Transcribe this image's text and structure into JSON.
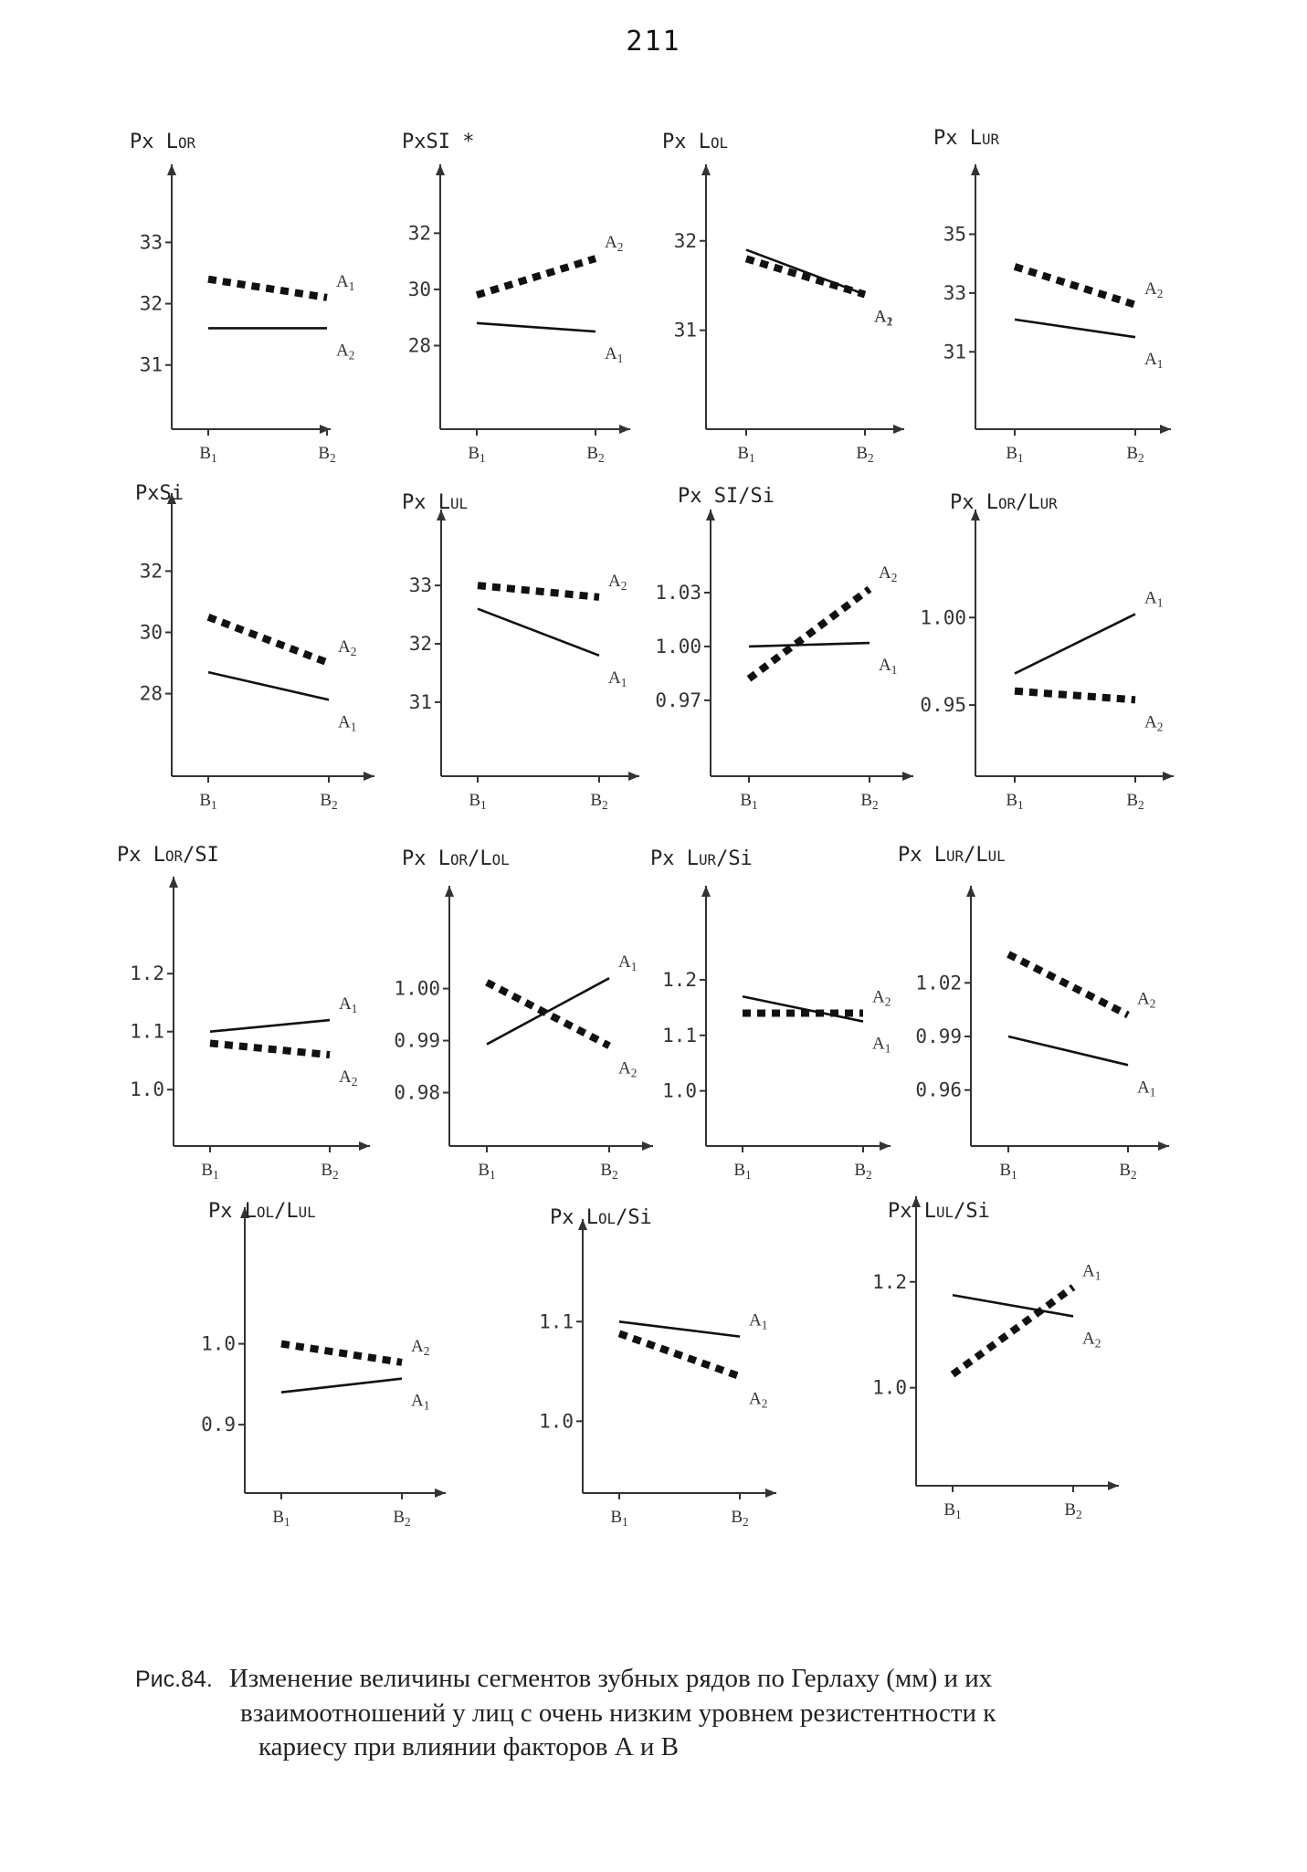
{
  "page_number": "211",
  "caption": {
    "figure_label": "Рис.84.",
    "line1": "Изменение величины сегментов зубных рядов по Герлаху (мм) и их",
    "line2": "взаимоотношений у лиц с очень низким уровнем резистентности к",
    "line3": "кариесу при влиянии  факторов А и В"
  },
  "chart_data": [
    {
      "type": "line",
      "ylabel": "Px Lor",
      "categories": [
        "B1",
        "B2"
      ],
      "yticks": [
        "33",
        "32",
        "31"
      ],
      "ylim": [
        30.4,
        33.9
      ],
      "series": [
        {
          "name": "A1",
          "style": "dotted",
          "values": [
            32.4,
            32.1
          ]
        },
        {
          "name": "A2",
          "style": "solid",
          "values": [
            31.6,
            31.6
          ]
        }
      ]
    },
    {
      "type": "line",
      "ylabel": "PxSI *",
      "categories": [
        "B1",
        "B2"
      ],
      "yticks": [
        "32",
        "30",
        "28"
      ],
      "ylim": [
        26.0,
        33.8
      ],
      "series": [
        {
          "name": "A2",
          "style": "dotted",
          "values": [
            29.8,
            31.1
          ]
        },
        {
          "name": "A1",
          "style": "solid",
          "values": [
            28.8,
            28.5
          ]
        }
      ]
    },
    {
      "type": "line",
      "ylabel": "Px Lol",
      "categories": [
        "B1",
        "B2"
      ],
      "yticks": [
        "32",
        "31"
      ],
      "ylim": [
        30.2,
        32.6
      ],
      "series": [
        {
          "name": "A1",
          "style": "solid",
          "values": [
            31.9,
            31.4
          ]
        },
        {
          "name": "A2",
          "style": "dotted",
          "values": [
            31.8,
            31.4
          ]
        }
      ]
    },
    {
      "type": "line",
      "ylabel": "Px Lur",
      "categories": [
        "B1",
        "B2"
      ],
      "yticks": [
        "35",
        "33",
        "31"
      ],
      "ylim": [
        29.3,
        36.6
      ],
      "series": [
        {
          "name": "A2",
          "style": "dotted",
          "values": [
            33.9,
            32.6
          ]
        },
        {
          "name": "A1",
          "style": "solid",
          "values": [
            32.1,
            31.5
          ]
        }
      ]
    },
    {
      "type": "line",
      "ylabel": "PxSi",
      "categories": [
        "B1",
        "B2"
      ],
      "yticks": [
        "32",
        "30",
        "28"
      ],
      "ylim": [
        26.2,
        33.8
      ],
      "series": [
        {
          "name": "A2",
          "style": "dotted",
          "values": [
            30.5,
            29.0
          ]
        },
        {
          "name": "A1",
          "style": "solid",
          "values": [
            28.7,
            27.8
          ]
        }
      ]
    },
    {
      "type": "line",
      "ylabel": "Px Lul",
      "categories": [
        "B1",
        "B2"
      ],
      "yticks": [
        "33",
        "32",
        "31"
      ],
      "ylim": [
        30.2,
        33.8
      ],
      "series": [
        {
          "name": "A2",
          "style": "dotted",
          "values": [
            33.0,
            32.8
          ]
        },
        {
          "name": "A1",
          "style": "solid",
          "values": [
            32.6,
            31.8
          ]
        }
      ]
    },
    {
      "type": "line",
      "ylabel": "Px SI/Si",
      "categories": [
        "B1",
        "B2"
      ],
      "yticks": [
        "1.03",
        "1.00",
        "0.97"
      ],
      "ylim": [
        0.943,
        1.06
      ],
      "series": [
        {
          "name": "A1",
          "style": "solid",
          "values": [
            1.0,
            1.002
          ]
        },
        {
          "name": "A2",
          "style": "dotted",
          "values": [
            0.982,
            1.032
          ]
        }
      ]
    },
    {
      "type": "line",
      "ylabel": "Px Lor/Lur",
      "categories": [
        "B1",
        "B2"
      ],
      "yticks": [
        "1.00",
        "0.95"
      ],
      "ylim": [
        0.925,
        1.045
      ],
      "series": [
        {
          "name": "A1",
          "style": "solid",
          "values": [
            0.968,
            1.002
          ]
        },
        {
          "name": "A2",
          "style": "dotted",
          "values": [
            0.958,
            0.953
          ]
        }
      ]
    },
    {
      "type": "line",
      "ylabel": "Px Lor/SI",
      "categories": [
        "B1",
        "B2"
      ],
      "yticks": [
        "1.2",
        "1.1",
        "1.0"
      ],
      "ylim": [
        0.95,
        1.32
      ],
      "series": [
        {
          "name": "A1",
          "style": "solid",
          "values": [
            1.1,
            1.12
          ]
        },
        {
          "name": "A2",
          "style": "dotted",
          "values": [
            1.08,
            1.06
          ]
        }
      ]
    },
    {
      "type": "line",
      "ylabel": "Px Lor/Lol",
      "categories": [
        "B1",
        "B2"
      ],
      "yticks": [
        "1.00",
        "0.99",
        "0.98"
      ],
      "ylim": [
        0.975,
        1.0145
      ],
      "series": [
        {
          "name": "A2",
          "style": "dotted",
          "values": [
            1.0012,
            0.989
          ]
        },
        {
          "name": "A1",
          "style": "solid",
          "values": [
            0.9893,
            1.002
          ]
        }
      ]
    },
    {
      "type": "line",
      "ylabel": "Px Lur/Si",
      "categories": [
        "B1",
        "B2"
      ],
      "yticks": [
        "1.2",
        "1.1",
        "1.0"
      ],
      "ylim": [
        0.95,
        1.32
      ],
      "series": [
        {
          "name": "A1",
          "style": "solid",
          "values": [
            1.17,
            1.125
          ]
        },
        {
          "name": "A2",
          "style": "dotted",
          "values": [
            1.14,
            1.14
          ]
        }
      ]
    },
    {
      "type": "line",
      "ylabel": "Px Lur/Lul",
      "categories": [
        "B1",
        "B2"
      ],
      "yticks": [
        "1.02",
        "0.99",
        "0.96"
      ],
      "ylim": [
        0.944,
        1.059
      ],
      "series": [
        {
          "name": "A2",
          "style": "dotted",
          "values": [
            1.036,
            1.002
          ]
        },
        {
          "name": "A1",
          "style": "solid",
          "values": [
            0.99,
            0.974
          ]
        }
      ]
    },
    {
      "type": "line",
      "ylabel": "Px Lol/Lul",
      "categories": [
        "B1",
        "B2"
      ],
      "yticks": [
        "1.0",
        "0.9"
      ],
      "ylim": [
        0.855,
        1.126
      ],
      "series": [
        {
          "name": "A2",
          "style": "dotted",
          "values": [
            1.0,
            0.977
          ]
        },
        {
          "name": "A1",
          "style": "solid",
          "values": [
            0.94,
            0.957
          ]
        }
      ]
    },
    {
      "type": "line",
      "ylabel": "Px Lol/Si",
      "categories": [
        "B1",
        "B2"
      ],
      "yticks": [
        "1.1",
        "1.0"
      ],
      "ylim": [
        0.96,
        1.18
      ],
      "series": [
        {
          "name": "A1",
          "style": "solid",
          "values": [
            1.1,
            1.085
          ]
        },
        {
          "name": "A2",
          "style": "dotted",
          "values": [
            1.088,
            1.045
          ]
        }
      ]
    },
    {
      "type": "line",
      "ylabel": "Px Lul/Si",
      "categories": [
        "B1",
        "B2"
      ],
      "yticks": [
        "1.2",
        "1.0"
      ],
      "ylim": [
        0.87,
        1.31
      ],
      "series": [
        {
          "name": "A2",
          "style": "solid",
          "values": [
            1.175,
            1.135
          ]
        },
        {
          "name": "A1",
          "style": "dotted",
          "values": [
            1.025,
            1.19
          ]
        }
      ]
    }
  ]
}
